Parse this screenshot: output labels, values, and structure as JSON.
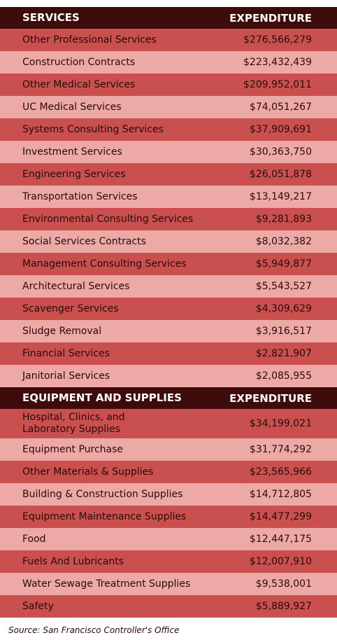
{
  "sections": [
    {
      "header": [
        "SERVICES",
        "EXPENDITURE"
      ],
      "rows": [
        [
          "Other Professional Services",
          "$276,566,279"
        ],
        [
          "Construction Contracts",
          "$223,432,439"
        ],
        [
          "Other Medical Services",
          "$209,952,011"
        ],
        [
          "UC Medical Services",
          "$74,051,267"
        ],
        [
          "Systems Consulting Services",
          "$37,909,691"
        ],
        [
          "Investment Services",
          "$30,363,750"
        ],
        [
          "Engineering Services",
          "$26,051,878"
        ],
        [
          "Transportation Services",
          "$13,149,217"
        ],
        [
          "Environmental Consulting Services",
          "$9,281,893"
        ],
        [
          "Social Services Contracts",
          "$8,032,382"
        ],
        [
          "Management Consulting Services",
          "$5,949,877"
        ],
        [
          "Architectural Services",
          "$5,543,527"
        ],
        [
          "Scavenger Services",
          "$4,309,629"
        ],
        [
          "Sludge Removal",
          "$3,916,517"
        ],
        [
          "Financial Services",
          "$2,821,907"
        ],
        [
          "Janitorial Services",
          "$2,085,955"
        ]
      ]
    },
    {
      "header": [
        "EQUIPMENT AND SUPPLIES",
        "EXPENDITURE"
      ],
      "rows": [
        [
          "Hospital, Clinics, and\nLaboratory Supplies",
          "$34,199,021"
        ],
        [
          "Equipment Purchase",
          "$31,774,292"
        ],
        [
          "Other Materials & Supplies",
          "$23,565,966"
        ],
        [
          "Building & Construction Supplies",
          "$14,712,805"
        ],
        [
          "Equipment Maintenance Supplies",
          "$14,477,299"
        ],
        [
          "Food",
          "$12,447,175"
        ],
        [
          "Fuels And Lubricants",
          "$12,007,910"
        ],
        [
          "Water Sewage Treatment Supplies",
          "$9,538,001"
        ],
        [
          "Safety",
          "$5,889,927"
        ]
      ]
    }
  ],
  "source": "Source: San Francisco Controller's Office"
}
